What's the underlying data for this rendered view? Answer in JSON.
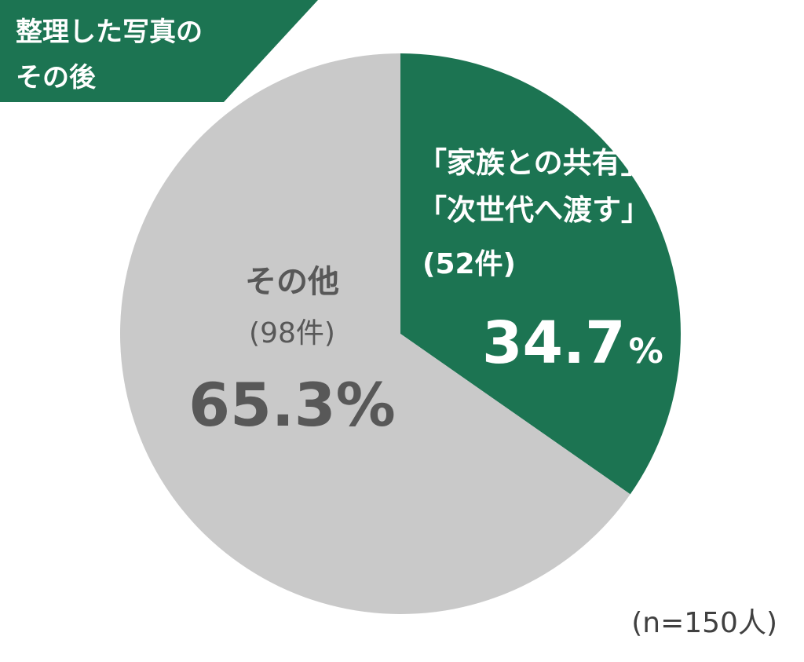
{
  "chart_data": {
    "type": "pie",
    "title_lines": [
      "整理した写真の",
      "その後"
    ],
    "slices": [
      {
        "label_lines": [
          "「家族との共有」",
          "「次世代へ渡す」"
        ],
        "count": "(52件)",
        "value": 34.7,
        "value_text": "34.7",
        "unit": "%",
        "color": "#1c7452"
      },
      {
        "label_lines": [
          "その他"
        ],
        "count": "(98件)",
        "value": 65.3,
        "value_text": "65.3",
        "unit": "%",
        "color": "#c9c9c9"
      }
    ],
    "note": "(n=150人)"
  },
  "colors": {
    "title_background": "#1c7452",
    "text_dark": "#585858",
    "note_text": "#404040"
  }
}
